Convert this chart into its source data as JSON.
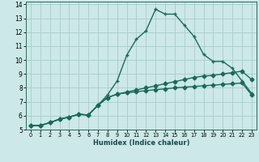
{
  "xlabel": "Humidex (Indice chaleur)",
  "bg_color": "#cce8e8",
  "grid_color": "#aacccc",
  "line_color": "#1a6a5a",
  "xlim": [
    -0.5,
    23.5
  ],
  "ylim": [
    5,
    14.2
  ],
  "xticks": [
    0,
    1,
    2,
    3,
    4,
    5,
    6,
    7,
    8,
    9,
    10,
    11,
    12,
    13,
    14,
    15,
    16,
    17,
    18,
    19,
    20,
    21,
    22,
    23
  ],
  "yticks": [
    5,
    6,
    7,
    8,
    9,
    10,
    11,
    12,
    13,
    14
  ],
  "line3_x": [
    0,
    1,
    2,
    3,
    4,
    5,
    6,
    7,
    8,
    9,
    10,
    11,
    12,
    13,
    14,
    15,
    16,
    17,
    18,
    19,
    20,
    21,
    22,
    23
  ],
  "line3_y": [
    5.3,
    5.3,
    5.5,
    5.75,
    5.9,
    6.1,
    6.05,
    6.75,
    7.5,
    8.5,
    10.35,
    11.5,
    12.1,
    13.65,
    13.3,
    13.3,
    12.5,
    11.7,
    10.4,
    9.9,
    9.9,
    9.4,
    8.5,
    7.6
  ],
  "line2_x": [
    0,
    1,
    2,
    3,
    4,
    5,
    6,
    7,
    8,
    9,
    10,
    11,
    12,
    13,
    14,
    15,
    16,
    17,
    18,
    19,
    20,
    21,
    22,
    23
  ],
  "line2_y": [
    5.3,
    5.3,
    5.5,
    5.75,
    5.9,
    6.1,
    6.05,
    6.75,
    7.3,
    7.55,
    7.7,
    7.85,
    8.0,
    8.15,
    8.3,
    8.45,
    8.6,
    8.75,
    8.85,
    8.9,
    9.0,
    9.1,
    9.2,
    8.6
  ],
  "line1_x": [
    0,
    1,
    2,
    3,
    4,
    5,
    6,
    7,
    8,
    9,
    10,
    11,
    12,
    13,
    14,
    15,
    16,
    17,
    18,
    19,
    20,
    21,
    22,
    23
  ],
  "line1_y": [
    5.3,
    5.3,
    5.5,
    5.75,
    5.9,
    6.1,
    6.05,
    6.75,
    7.3,
    7.55,
    7.65,
    7.72,
    7.8,
    7.87,
    7.93,
    8.0,
    8.05,
    8.1,
    8.15,
    8.2,
    8.25,
    8.3,
    8.35,
    7.5
  ],
  "marker_size_diamond": 2.5,
  "marker_size_plus": 3.5,
  "line_width": 1.0
}
